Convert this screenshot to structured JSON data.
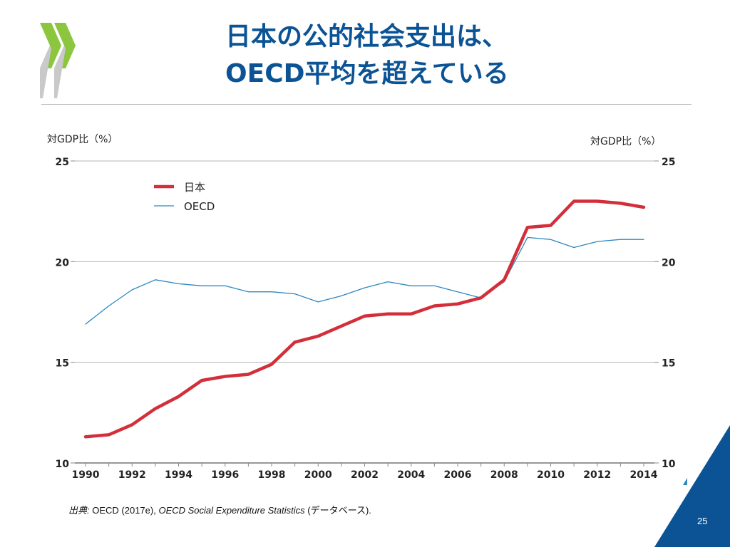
{
  "slide": {
    "title_line1": "日本の公的社会支出は、",
    "title_line2": "OECD平均を超えている",
    "page_number": "25",
    "accent_color": "#0b5394",
    "logo_color": "#8cc63f"
  },
  "source": {
    "label": "出典:",
    "text1": " OECD (2017e), ",
    "title": "OECD Social Expenditure Statistics",
    "text2": " (データベース)."
  },
  "chart_data": {
    "type": "line",
    "ylabel_left": "対GDP比（%）",
    "ylabel_right": "対GDP比（%）",
    "ylim": [
      10,
      25
    ],
    "yticks": [
      "25",
      "20",
      "15",
      "10"
    ],
    "xlim": [
      1990,
      2014
    ],
    "xticks": [
      "1990",
      "1992",
      "1994",
      "1996",
      "1998",
      "2000",
      "2002",
      "2004",
      "2006",
      "2008",
      "2010",
      "2012",
      "2014"
    ],
    "grid": true,
    "legend_position": "top-left",
    "x": [
      1990,
      1991,
      1992,
      1993,
      1994,
      1995,
      1996,
      1997,
      1998,
      1999,
      2000,
      2001,
      2002,
      2003,
      2004,
      2005,
      2006,
      2007,
      2008,
      2009,
      2010,
      2011,
      2012,
      2013,
      2014
    ],
    "series": [
      {
        "name": "日本",
        "color": "#d32f3a",
        "values": [
          11.3,
          11.4,
          11.9,
          12.7,
          13.3,
          14.1,
          14.3,
          14.4,
          14.9,
          16.0,
          16.3,
          16.8,
          17.3,
          17.4,
          17.4,
          17.8,
          17.9,
          18.2,
          19.1,
          21.7,
          21.8,
          23.0,
          23.0,
          22.9,
          22.7
        ]
      },
      {
        "name": "OECD",
        "color": "#2e86c1",
        "values": [
          16.9,
          17.8,
          18.6,
          19.1,
          18.9,
          18.8,
          18.8,
          18.5,
          18.5,
          18.4,
          18.0,
          18.3,
          18.7,
          19.0,
          18.8,
          18.8,
          18.5,
          18.2,
          19.0,
          21.2,
          21.1,
          20.7,
          21.0,
          21.1,
          21.1
        ]
      }
    ]
  }
}
